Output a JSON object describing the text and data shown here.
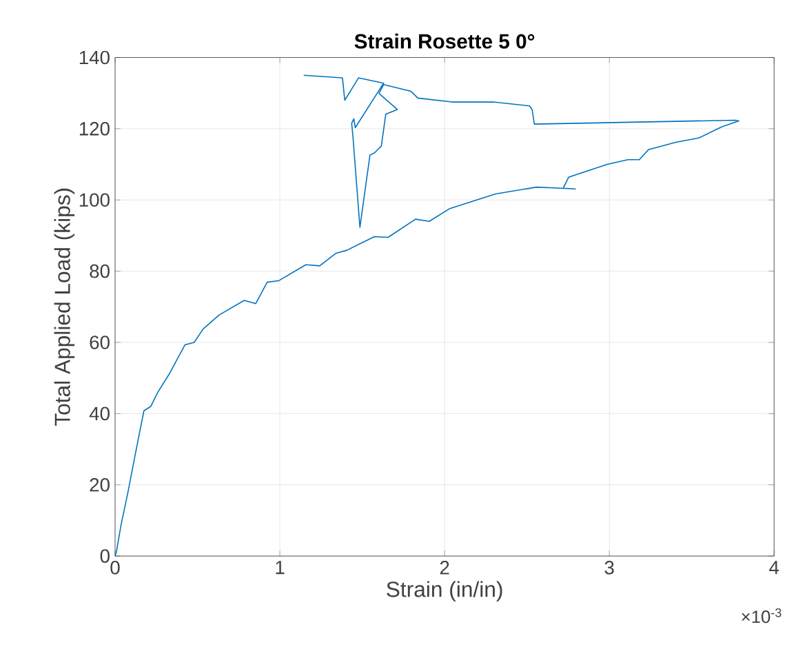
{
  "chart_data": {
    "type": "line",
    "title": "Strain Rosette 5 0°",
    "xlabel": "Strain (in/in)",
    "ylabel": "Total Applied Load (kips)",
    "annotations": [
      "×10$^{-3}$"
    ],
    "series": [
      {
        "color": "#0072bd",
        "x": [
          0,
          0.008,
          0.036,
          0.077,
          0.12,
          0.147,
          0.175,
          0.216,
          0.258,
          0.327,
          0.424,
          0.48,
          0.535,
          0.632,
          0.784,
          0.854,
          0.923,
          0.992,
          1.158,
          1.242,
          1.339,
          1.408,
          1.574,
          1.657,
          1.824,
          1.907,
          2.032,
          2.309,
          2.558,
          2.711,
          2.794,
          2.72,
          2.753,
          2.988,
          3.113,
          3.182,
          3.237,
          3.404,
          3.543,
          3.681,
          3.786,
          3.764,
          2.545,
          2.531,
          2.516,
          2.295,
          2.046,
          1.838,
          1.796,
          1.63,
          1.602,
          1.713,
          1.643,
          1.616,
          1.574,
          1.547,
          1.486,
          1.444,
          1.436,
          1.449,
          1.458,
          1.63,
          1.478,
          1.394,
          1.38,
          1.145
        ],
        "values": [
          0,
          1.2,
          8.7,
          17.7,
          28,
          34.3,
          40.8,
          42,
          45.9,
          51,
          59.3,
          60,
          63.8,
          67.7,
          71.8,
          70.9,
          76.9,
          77.3,
          81.8,
          81.5,
          85,
          85.9,
          89.7,
          89.5,
          94.6,
          94,
          97.6,
          101.7,
          103.6,
          103.3,
          103.1,
          103.3,
          106.4,
          110,
          111.3,
          111.3,
          114.1,
          116.2,
          117.4,
          120.5,
          122.2,
          122.4,
          121.3,
          125.4,
          126.4,
          127.5,
          127.5,
          128.6,
          130.5,
          132.4,
          129.9,
          125.4,
          124.1,
          115.1,
          113.2,
          112.6,
          92.3,
          117.7,
          121.5,
          122.8,
          120.3,
          132.8,
          134.3,
          128,
          134.3,
          135
        ]
      }
    ],
    "xlim": [
      0,
      4
    ],
    "ylim": [
      0,
      140
    ],
    "xticks": [
      0,
      1,
      2,
      3,
      4
    ],
    "yticks": [
      0,
      20,
      40,
      60,
      80,
      100,
      120,
      140
    ],
    "grid": true,
    "marker": "none",
    "line_style": "solid"
  }
}
